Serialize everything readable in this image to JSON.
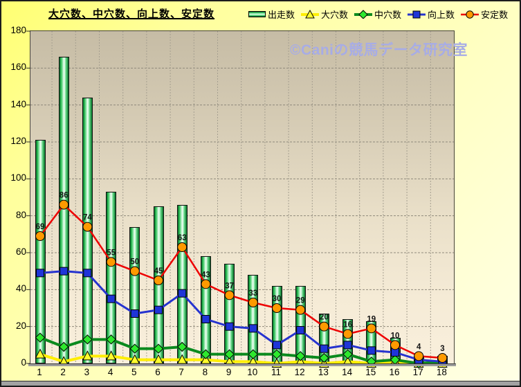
{
  "watermark": "©Caniの競馬データ研究室",
  "chart_data": {
    "type": "bar",
    "subtype": "combo-bar-and-lines",
    "title": "大穴数、中穴数、向上数、安定数",
    "categories": [
      "1",
      "2",
      "3",
      "4",
      "5",
      "6",
      "7",
      "8",
      "9",
      "10",
      "11",
      "12",
      "13",
      "14",
      "15",
      "16",
      "17",
      "18"
    ],
    "series": [
      {
        "name": "出走数",
        "type": "bar",
        "color": "#2fbf57",
        "values": [
          121,
          166,
          144,
          93,
          74,
          85,
          86,
          58,
          54,
          48,
          42,
          42,
          27,
          24,
          23,
          14,
          4,
          4
        ]
      },
      {
        "name": "大穴数",
        "type": "line",
        "marker": "triangle",
        "line_color": "#ffee00",
        "marker_color": "#ffff2e",
        "line_width": 4,
        "values": [
          5,
          1,
          4,
          4,
          2,
          2,
          2,
          2,
          1,
          1,
          0,
          1,
          0,
          1,
          0,
          1,
          0,
          0
        ]
      },
      {
        "name": "中穴数",
        "type": "line",
        "marker": "diamond",
        "line_color": "#0b8a1e",
        "marker_color": "#2ee82e",
        "line_width": 4,
        "values": [
          14,
          9,
          13,
          13,
          8,
          8,
          9,
          5,
          5,
          5,
          5,
          4,
          3,
          5,
          1,
          2,
          0,
          1
        ]
      },
      {
        "name": "向上数",
        "type": "line",
        "marker": "square",
        "line_color": "#2633cf",
        "marker_color": "#1f35d8",
        "line_width": 3,
        "values": [
          49,
          50,
          49,
          35,
          27,
          29,
          38,
          24,
          20,
          19,
          10,
          18,
          8,
          10,
          7,
          6,
          2,
          1
        ]
      },
      {
        "name": "安定数",
        "type": "line",
        "marker": "circle",
        "line_color": "#ee0000",
        "marker_color": "#ff9a00",
        "line_width": 2.5,
        "data_labels": true,
        "values": [
          69,
          86,
          74,
          55,
          50,
          45,
          63,
          43,
          37,
          33,
          30,
          29,
          20,
          16,
          19,
          10,
          4,
          3
        ]
      }
    ],
    "xlabel": "",
    "ylabel": "",
    "ylim": [
      0,
      180
    ],
    "yticks": [
      0,
      20,
      40,
      60,
      80,
      100,
      120,
      140,
      160,
      180
    ],
    "grid": "horizontal and vertical dashed gridlines",
    "legend_position": "top"
  }
}
